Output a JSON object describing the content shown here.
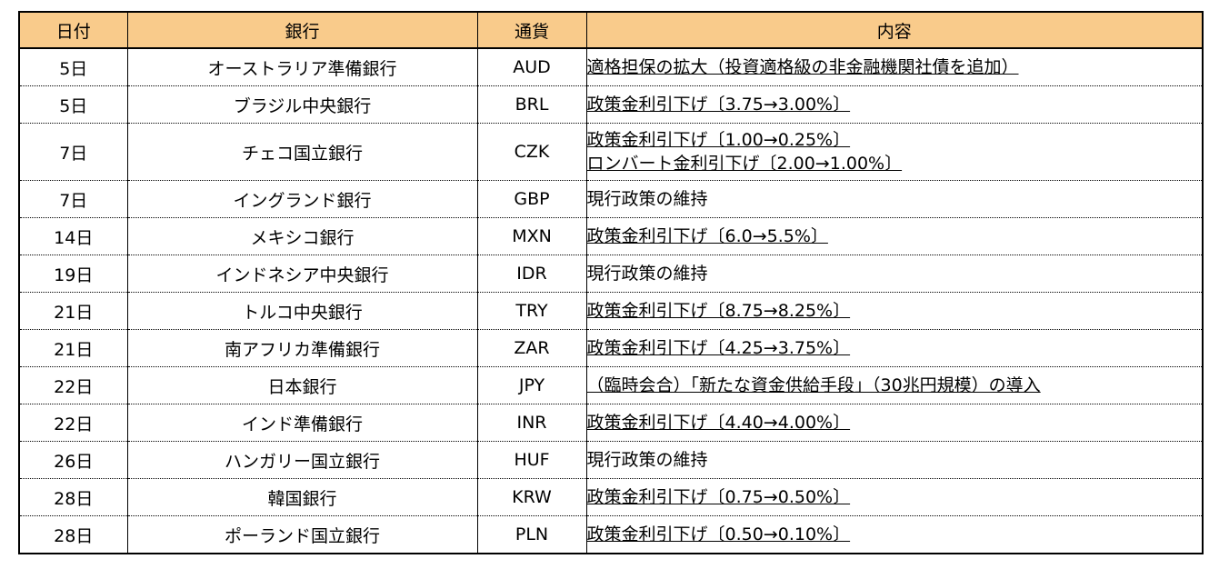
{
  "columns": {
    "date": "日付",
    "bank": "銀行",
    "currency": "通貨",
    "content": "内容"
  },
  "rows": [
    {
      "date": "5日",
      "bank": "オーストラリア準備銀行",
      "currency": "AUD",
      "content": [
        "適格担保の拡大（投資適格級の非金融機関社債を追加）"
      ],
      "underlined": true
    },
    {
      "date": "5日",
      "bank": "ブラジル中央銀行",
      "currency": "BRL",
      "content": [
        "政策金利引下げ〔3.75→3.00%〕"
      ],
      "underlined": true
    },
    {
      "date": "7日",
      "bank": "チェコ国立銀行",
      "currency": "CZK",
      "content": [
        "政策金利引下げ〔1.00→0.25%〕",
        "ロンバート金利引下げ〔2.00→1.00%〕"
      ],
      "underlined": true
    },
    {
      "date": "7日",
      "bank": "イングランド銀行",
      "currency": "GBP",
      "content": [
        "現行政策の維持"
      ],
      "underlined": false
    },
    {
      "date": "14日",
      "bank": "メキシコ銀行",
      "currency": "MXN",
      "content": [
        "政策金利引下げ〔6.0→5.5%〕"
      ],
      "underlined": true
    },
    {
      "date": "19日",
      "bank": "インドネシア中央銀行",
      "currency": "IDR",
      "content": [
        "現行政策の維持"
      ],
      "underlined": false
    },
    {
      "date": "21日",
      "bank": "トルコ中央銀行",
      "currency": "TRY",
      "content": [
        "政策金利引下げ〔8.75→8.25%〕"
      ],
      "underlined": true
    },
    {
      "date": "21日",
      "bank": "南アフリカ準備銀行",
      "currency": "ZAR",
      "content": [
        "政策金利引下げ〔4.25→3.75%〕"
      ],
      "underlined": true
    },
    {
      "date": "22日",
      "bank": "日本銀行",
      "currency": "JPY",
      "content": [
        "（臨時会合）「新たな資金供給手段」（30兆円規模）の導入"
      ],
      "underlined": true
    },
    {
      "date": "22日",
      "bank": "インド準備銀行",
      "currency": "INR",
      "content": [
        "政策金利引下げ〔4.40→4.00%〕"
      ],
      "underlined": true
    },
    {
      "date": "26日",
      "bank": "ハンガリー国立銀行",
      "currency": "HUF",
      "content": [
        "現行政策の維持"
      ],
      "underlined": false
    },
    {
      "date": "28日",
      "bank": "韓国銀行",
      "currency": "KRW",
      "content": [
        "政策金利引下げ〔0.75→0.50%〕"
      ],
      "underlined": true
    },
    {
      "date": "28日",
      "bank": "ポーランド国立銀行",
      "currency": "PLN",
      "content": [
        "政策金利引下げ〔0.50→0.10%〕"
      ],
      "underlined": true
    }
  ],
  "colors": {
    "header_bg": "#f9cb8b",
    "border": "#000000",
    "text": "#000000"
  }
}
